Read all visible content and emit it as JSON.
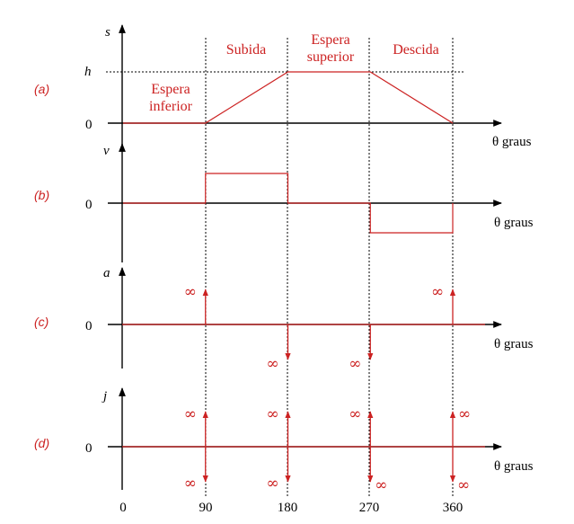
{
  "colors": {
    "accent": "#cc2222",
    "axis": "#000000"
  },
  "x_ticks": [
    "0",
    "90",
    "180",
    "270",
    "360"
  ],
  "x_axis_label": "θ  graus",
  "panels": [
    {
      "key": "a",
      "panel_label": "(a)",
      "y_label": "s",
      "zero_label": "0",
      "h_label": "h",
      "phases": [
        "Subida",
        "Espera superior",
        "Descida"
      ],
      "phase_lines": {
        "espera_inf_1": "Espera",
        "espera_inf_2": "inferior",
        "subida": "Subida",
        "espera_sup_1": "Espera",
        "espera_sup_2": "superior",
        "descida": "Descida"
      },
      "profile": [
        [
          0,
          0
        ],
        [
          90,
          0
        ],
        [
          180,
          1
        ],
        [
          270,
          1
        ],
        [
          360,
          0
        ]
      ]
    },
    {
      "key": "b",
      "panel_label": "(b)",
      "y_label": "v",
      "zero_label": "0",
      "profile": [
        [
          0,
          0
        ],
        [
          90,
          0
        ],
        [
          90,
          1
        ],
        [
          180,
          1
        ],
        [
          180,
          0
        ],
        [
          270,
          0
        ],
        [
          270,
          -1
        ],
        [
          360,
          -1
        ],
        [
          360,
          0
        ]
      ]
    },
    {
      "key": "c",
      "panel_label": "(c)",
      "y_label": "a",
      "zero_label": "0",
      "infinity_symbol": "∞",
      "impulses": [
        {
          "angle": 90,
          "direction": "up"
        },
        {
          "angle": 180,
          "direction": "down"
        },
        {
          "angle": 270,
          "direction": "down"
        },
        {
          "angle": 360,
          "direction": "up"
        }
      ]
    },
    {
      "key": "d",
      "panel_label": "(d)",
      "y_label": "j",
      "zero_label": "0",
      "infinity_symbol": "∞",
      "impulses": [
        {
          "angle": 90,
          "direction": "both"
        },
        {
          "angle": 180,
          "direction": "both"
        },
        {
          "angle": 270,
          "direction": "both"
        },
        {
          "angle": 360,
          "direction": "both"
        }
      ]
    }
  ]
}
